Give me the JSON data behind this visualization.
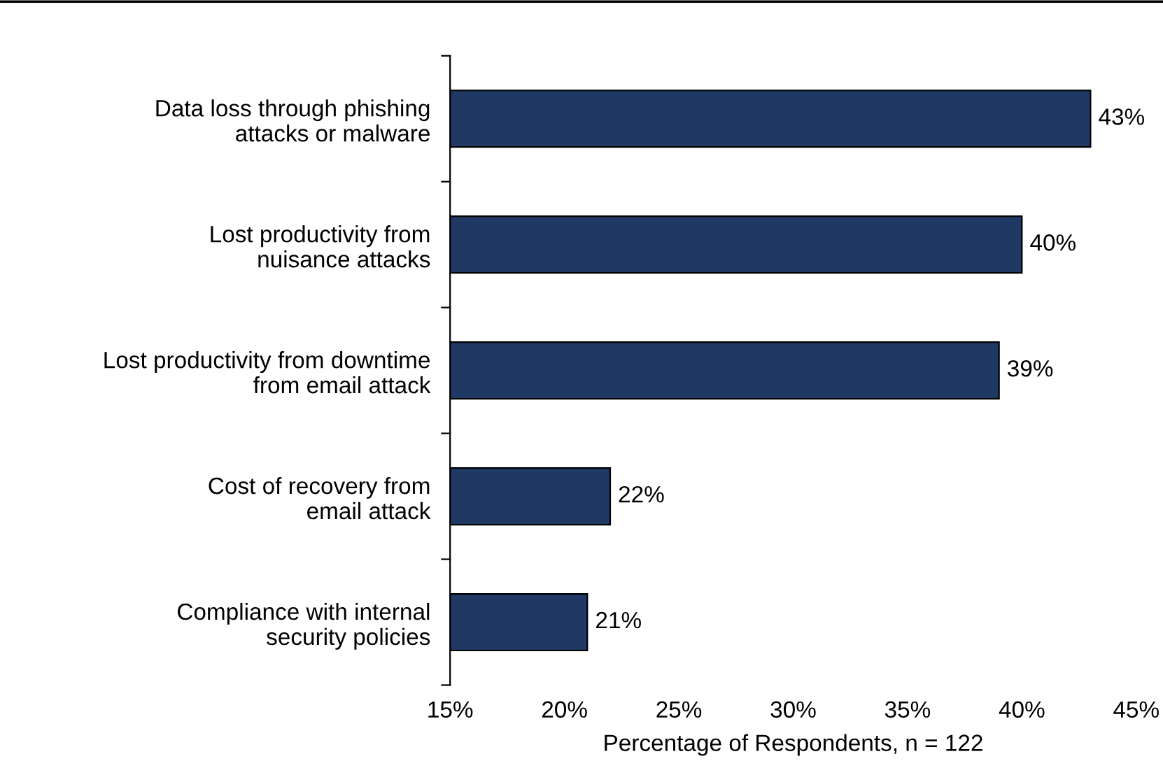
{
  "chart_data": {
    "type": "bar",
    "orientation": "horizontal",
    "xlabel": "Percentage of Respondents, n = 122",
    "categories": [
      "Data loss through phishing\nattacks or malware",
      "Lost productivity from\nnuisance attacks",
      "Lost productivity from downtime\nfrom email attack",
      "Cost of recovery from\nemail attack",
      "Compliance with internal\nsecurity policies"
    ],
    "values": [
      43,
      40,
      39,
      22,
      21
    ],
    "value_labels": [
      "43%",
      "40%",
      "39%",
      "22%",
      "21%"
    ],
    "color": "#1f3864",
    "xlim": [
      15,
      45
    ],
    "xticks": [
      {
        "value": 15,
        "label": "15%"
      },
      {
        "value": 20,
        "label": "20%"
      },
      {
        "value": 25,
        "label": "25%"
      },
      {
        "value": 30,
        "label": "30%"
      },
      {
        "value": 35,
        "label": "35%"
      },
      {
        "value": 40,
        "label": "40%"
      },
      {
        "value": 45,
        "label": "45%"
      }
    ],
    "grid": false,
    "legend": false
  }
}
